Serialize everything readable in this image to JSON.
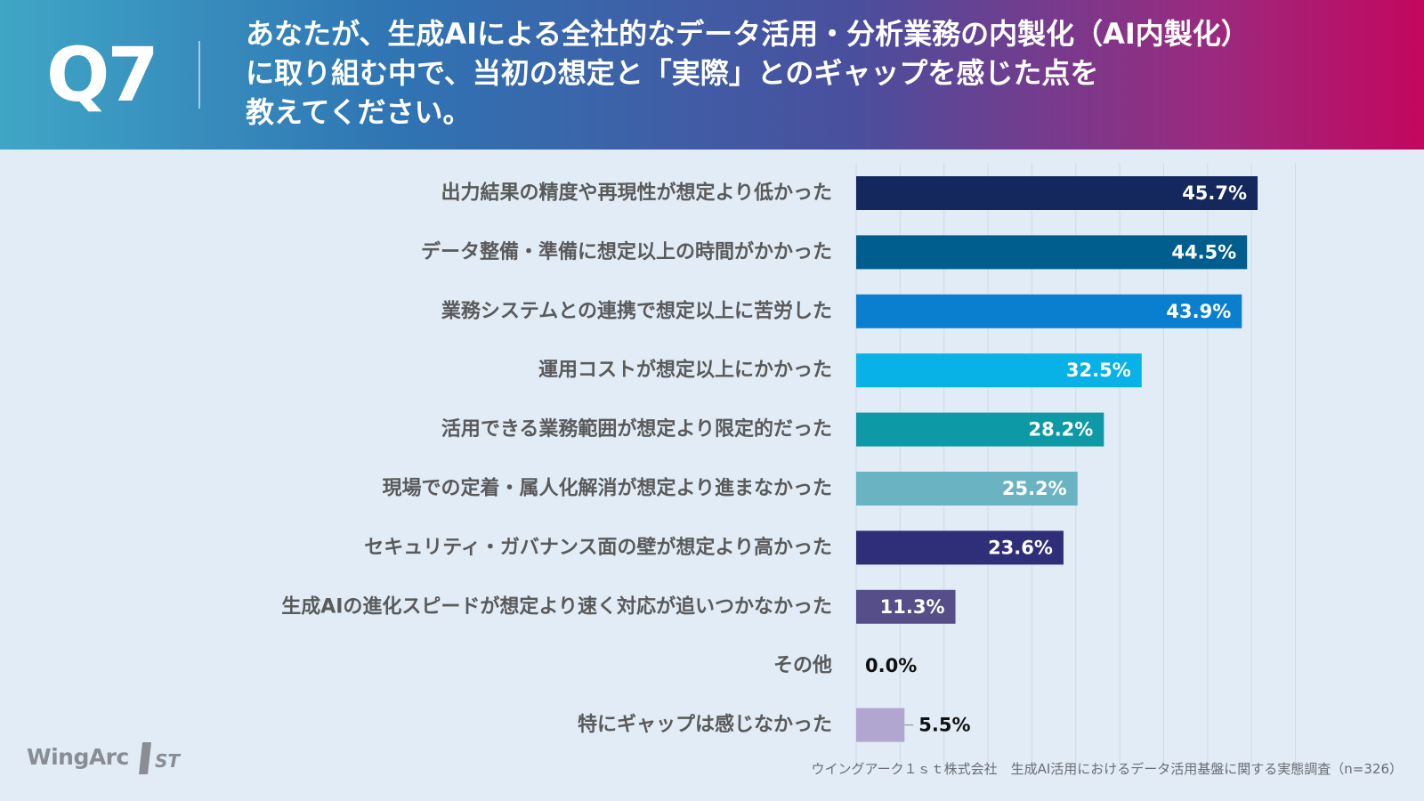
{
  "header": {
    "q_label": "Q7",
    "question_lines": [
      "あなたが、生成AIによる全社的なデータ活用・分析業務の内製化（AI内製化）",
      "に取り組む中で、当初の想定と「実際」とのギャップを感じた点を",
      "教えてください。"
    ]
  },
  "chart_data": {
    "type": "bar",
    "orientation": "horizontal",
    "categories": [
      "出力結果の精度や再現性が想定より低かった",
      "データ整備・準備に想定以上の時間がかかった",
      "業務システムとの連携で想定以上に苦労した",
      "運用コストが想定以上にかかった",
      "活用できる業務範囲が想定より限定的だった",
      "現場での定着・属人化解消が想定より進まなかった",
      "セキュリティ・ガバナンス面の壁が想定より高かった",
      "生成AIの進化スピードが想定より速く対応が追いつかなかった",
      "その他",
      "特にギャップは感じなかった"
    ],
    "values": [
      45.7,
      44.5,
      43.9,
      32.5,
      28.2,
      25.2,
      23.6,
      11.3,
      0.0,
      5.5
    ],
    "value_labels": [
      "45.7%",
      "44.5%",
      "43.9%",
      "32.5%",
      "28.2%",
      "25.2%",
      "23.6%",
      "11.3%",
      "0.0%",
      "5.5%"
    ],
    "colors": [
      "#14285e",
      "#005e8e",
      "#0a7fcf",
      "#08b2e6",
      "#0d9aa6",
      "#6ab3c3",
      "#2f2e78",
      "#564e88",
      "#000000",
      "#b1a6d0"
    ],
    "label_text_colors": [
      "#ffffff",
      "#ffffff",
      "#ffffff",
      "#ffffff",
      "#ffffff",
      "#ffffff",
      "#ffffff",
      "#ffffff",
      "#111111",
      "#111111"
    ],
    "xlim": [
      0,
      50
    ],
    "grid": true,
    "grid_color": "#cfdae6",
    "category_label_color": "#5a5a5a"
  },
  "footer": {
    "logo_text": "WingArc",
    "logo_mark": "1ST",
    "source": "ウイングアーク１ｓｔ株式会社　生成AI活用におけるデータ活用基盤に関する実態調査（n=326）"
  }
}
